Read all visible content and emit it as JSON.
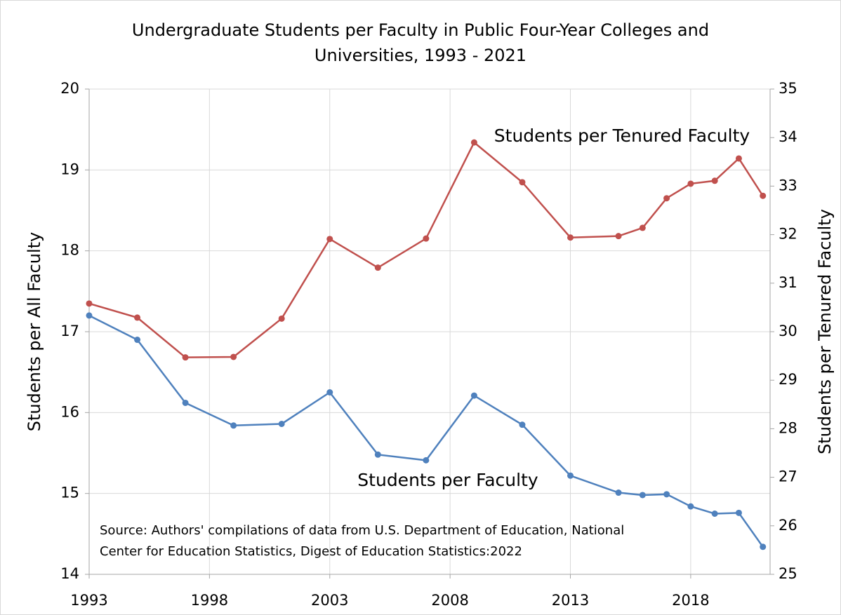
{
  "chart_data": {
    "type": "line",
    "title": [
      "Undergraduate Students per Faculty in Public Four-Year Colleges and",
      "Universities, 1993 - 2021"
    ],
    "y_label": "Students per All Faculty",
    "y2_label": "Students per Tenured Faculty",
    "x": [
      1993,
      1995,
      1997,
      1999,
      2001,
      2003,
      2005,
      2007,
      2009,
      2011,
      2013,
      2015,
      2016,
      2017,
      2018,
      2019,
      2020,
      2021
    ],
    "series": [
      {
        "name": "Students per Faculty",
        "color": "#4f81bd",
        "values": [
          17.2,
          16.9,
          16.12,
          15.84,
          15.86,
          16.25,
          15.48,
          15.41,
          16.21,
          15.85,
          15.22,
          15.01,
          14.98,
          14.99,
          14.84,
          14.75,
          14.76,
          14.34
        ]
      },
      {
        "name": "Students per Tenured Faculty",
        "color": "#c0504d",
        "axis": "y2",
        "values": [
          30.58,
          30.29,
          29.47,
          29.48,
          30.27,
          31.91,
          31.32,
          31.92,
          33.9,
          33.08,
          31.94,
          31.97,
          32.14,
          32.75,
          33.05,
          33.11,
          33.57,
          32.8
        ]
      }
    ],
    "source": [
      "Source: Authors' compilations of data from U.S. Department of Education, National",
      "Center for Education Statistics, Digest of Education Statistics:2022"
    ],
    "xlim": [
      1993,
      2021.3
    ],
    "xticks": [
      1993,
      1998,
      2003,
      2008,
      2013,
      2018
    ],
    "ylim": [
      14,
      20
    ],
    "yticks": [
      14,
      15,
      16,
      17,
      18,
      19,
      20
    ],
    "y2lim": [
      25,
      35
    ],
    "y2ticks": [
      25,
      26,
      27,
      28,
      29,
      30,
      31,
      32,
      33,
      34,
      35
    ],
    "grid": true
  }
}
